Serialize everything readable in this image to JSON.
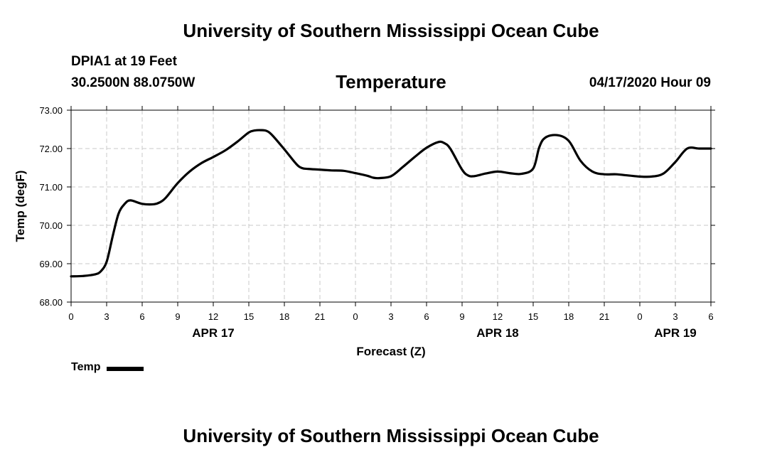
{
  "header": {
    "title": "University of Southern Mississippi Ocean Cube",
    "station": "DPIA1 at 19 Feet",
    "coords": "30.2500N 88.0750W",
    "timestamp": "04/17/2020 Hour 09"
  },
  "footer": {
    "title": "University of Southern Mississippi Ocean Cube"
  },
  "chart_data": {
    "type": "line",
    "title": "Temperature",
    "xlabel": "Forecast (Z)",
    "ylabel": "Temp (degF)",
    "ylim": [
      68,
      73
    ],
    "yticks": [
      "68.00",
      "69.00",
      "70.00",
      "71.00",
      "72.00",
      "73.00"
    ],
    "xlim": [
      0,
      54
    ],
    "xtick_labels": [
      "0",
      "3",
      "6",
      "9",
      "12",
      "15",
      "18",
      "21",
      "0",
      "3",
      "6",
      "9",
      "12",
      "15",
      "18",
      "21",
      "0",
      "3",
      "6"
    ],
    "date_labels": [
      {
        "hour": 12,
        "label": "APR 17"
      },
      {
        "hour": 36,
        "label": "APR 18"
      },
      {
        "hour": 51,
        "label": "APR 19"
      }
    ],
    "grid": true,
    "legend": "bottom-left",
    "series": [
      {
        "name": "Temp",
        "color": "#000000",
        "x": [
          0,
          1,
          2,
          2.5,
          3,
          3.5,
          4,
          4.5,
          5,
          6,
          7,
          7.5,
          8,
          9,
          10,
          11,
          12,
          13,
          14,
          15,
          15.5,
          16,
          16.5,
          17,
          18,
          19,
          19.5,
          20,
          21,
          22,
          23,
          24,
          25,
          25.5,
          26,
          27,
          28,
          29,
          30,
          31,
          31.5,
          32,
          33,
          33.5,
          34,
          35,
          36,
          37,
          38,
          39,
          39.5,
          40,
          41,
          42,
          43,
          44,
          45,
          46,
          47,
          48,
          49,
          50,
          51,
          52,
          53,
          54
        ],
        "values": [
          68.67,
          68.68,
          68.72,
          68.8,
          69.05,
          69.7,
          70.3,
          70.55,
          70.65,
          70.56,
          70.55,
          70.6,
          70.72,
          71.1,
          71.4,
          71.62,
          71.78,
          71.95,
          72.17,
          72.42,
          72.47,
          72.48,
          72.46,
          72.34,
          71.98,
          71.6,
          71.49,
          71.47,
          71.45,
          71.43,
          71.42,
          71.36,
          71.29,
          71.24,
          71.23,
          71.28,
          71.52,
          71.78,
          72.02,
          72.17,
          72.14,
          72.0,
          71.45,
          71.3,
          71.28,
          71.35,
          71.4,
          71.36,
          71.34,
          71.48,
          72.02,
          72.28,
          72.35,
          72.2,
          71.68,
          71.4,
          71.33,
          71.33,
          71.3,
          71.27,
          71.27,
          71.35,
          71.65,
          72.0,
          72.0,
          72.0
        ]
      }
    ]
  }
}
